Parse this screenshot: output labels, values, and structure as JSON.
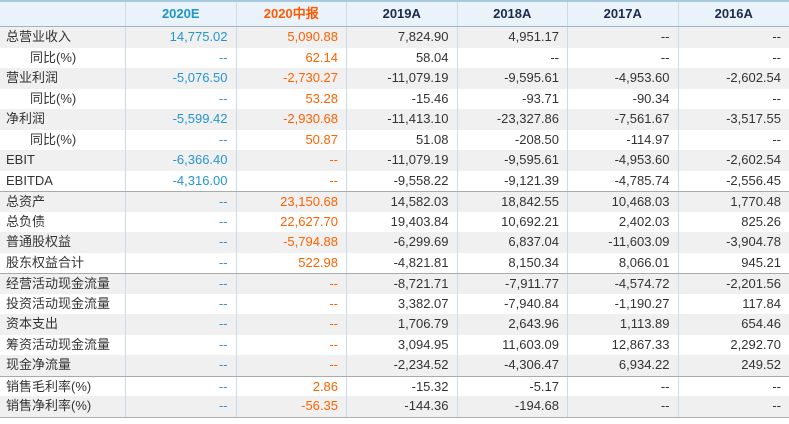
{
  "colors": {
    "estimate_blue": "#2596cf",
    "interim_orange": "#ff6200",
    "header_navy": "#1b2b4d",
    "value_dark": "#333333",
    "stripe_gray": "#f0f0f0",
    "header_bg": "#eaf3fa",
    "grid_line_blue": "#c9dcea",
    "section_separator_gray": "#aaaaaa",
    "top_border_blue": "#a6c9e0"
  },
  "table": {
    "columns": [
      {
        "label": "",
        "style": "label"
      },
      {
        "label": "2020E",
        "style": "estimate"
      },
      {
        "label": "2020中报",
        "style": "interim"
      },
      {
        "label": "2019A",
        "style": "actual"
      },
      {
        "label": "2018A",
        "style": "actual"
      },
      {
        "label": "2017A",
        "style": "actual"
      },
      {
        "label": "2016A",
        "style": "actual"
      }
    ],
    "rows": [
      {
        "label": "总营业收入",
        "indent": false,
        "section_start": false,
        "values": [
          "14,775.02",
          "5,090.88",
          "7,824.90",
          "4,951.17",
          "--",
          "--"
        ]
      },
      {
        "label": "同比(%)",
        "indent": true,
        "section_start": false,
        "values": [
          "--",
          "62.14",
          "58.04",
          "--",
          "--",
          "--"
        ]
      },
      {
        "label": "营业利润",
        "indent": false,
        "section_start": false,
        "values": [
          "-5,076.50",
          "-2,730.27",
          "-11,079.19",
          "-9,595.61",
          "-4,953.60",
          "-2,602.54"
        ]
      },
      {
        "label": "同比(%)",
        "indent": true,
        "section_start": false,
        "values": [
          "--",
          "53.28",
          "-15.46",
          "-93.71",
          "-90.34",
          "--"
        ]
      },
      {
        "label": "净利润",
        "indent": false,
        "section_start": false,
        "values": [
          "-5,599.42",
          "-2,930.68",
          "-11,413.10",
          "-23,327.86",
          "-7,561.67",
          "-3,517.55"
        ]
      },
      {
        "label": "同比(%)",
        "indent": true,
        "section_start": false,
        "values": [
          "--",
          "50.87",
          "51.08",
          "-208.50",
          "-114.97",
          "--"
        ]
      },
      {
        "label": "EBIT",
        "indent": false,
        "section_start": false,
        "values": [
          "-6,366.40",
          "--",
          "-11,079.19",
          "-9,595.61",
          "-4,953.60",
          "-2,602.54"
        ]
      },
      {
        "label": "EBITDA",
        "indent": false,
        "section_start": false,
        "values": [
          "-4,316.00",
          "--",
          "-9,558.22",
          "-9,121.39",
          "-4,785.74",
          "-2,556.45"
        ]
      },
      {
        "label": "总资产",
        "indent": false,
        "section_start": true,
        "values": [
          "--",
          "23,150.68",
          "14,582.03",
          "18,842.55",
          "10,468.03",
          "1,770.48"
        ]
      },
      {
        "label": "总负债",
        "indent": false,
        "section_start": false,
        "values": [
          "--",
          "22,627.70",
          "19,403.84",
          "10,692.21",
          "2,402.03",
          "825.26"
        ]
      },
      {
        "label": "普通股权益",
        "indent": false,
        "section_start": false,
        "values": [
          "--",
          "-5,794.88",
          "-6,299.69",
          "6,837.04",
          "-11,603.09",
          "-3,904.78"
        ]
      },
      {
        "label": "股东权益合计",
        "indent": false,
        "section_start": false,
        "values": [
          "--",
          "522.98",
          "-4,821.81",
          "8,150.34",
          "8,066.01",
          "945.21"
        ]
      },
      {
        "label": "经营活动现金流量",
        "indent": false,
        "section_start": true,
        "values": [
          "--",
          "--",
          "-8,721.71",
          "-7,911.77",
          "-4,574.72",
          "-2,201.56"
        ]
      },
      {
        "label": "投资活动现金流量",
        "indent": false,
        "section_start": false,
        "values": [
          "--",
          "--",
          "3,382.07",
          "-7,940.84",
          "-1,190.27",
          "117.84"
        ]
      },
      {
        "label": "资本支出",
        "indent": false,
        "section_start": false,
        "values": [
          "--",
          "--",
          "1,706.79",
          "2,643.96",
          "1,113.89",
          "654.46"
        ]
      },
      {
        "label": "筹资活动现金流量",
        "indent": false,
        "section_start": false,
        "values": [
          "--",
          "--",
          "3,094.95",
          "11,603.09",
          "12,867.33",
          "2,292.70"
        ]
      },
      {
        "label": "现金净流量",
        "indent": false,
        "section_start": false,
        "values": [
          "--",
          "--",
          "-2,234.52",
          "-4,306.47",
          "6,934.22",
          "249.52"
        ]
      },
      {
        "label": "销售毛利率(%)",
        "indent": false,
        "section_start": true,
        "values": [
          "--",
          "2.86",
          "-15.32",
          "-5.17",
          "--",
          "--"
        ]
      },
      {
        "label": "销售净利率(%)",
        "indent": false,
        "section_start": false,
        "values": [
          "--",
          "-56.35",
          "-144.36",
          "-194.68",
          "--",
          "--"
        ]
      }
    ]
  }
}
